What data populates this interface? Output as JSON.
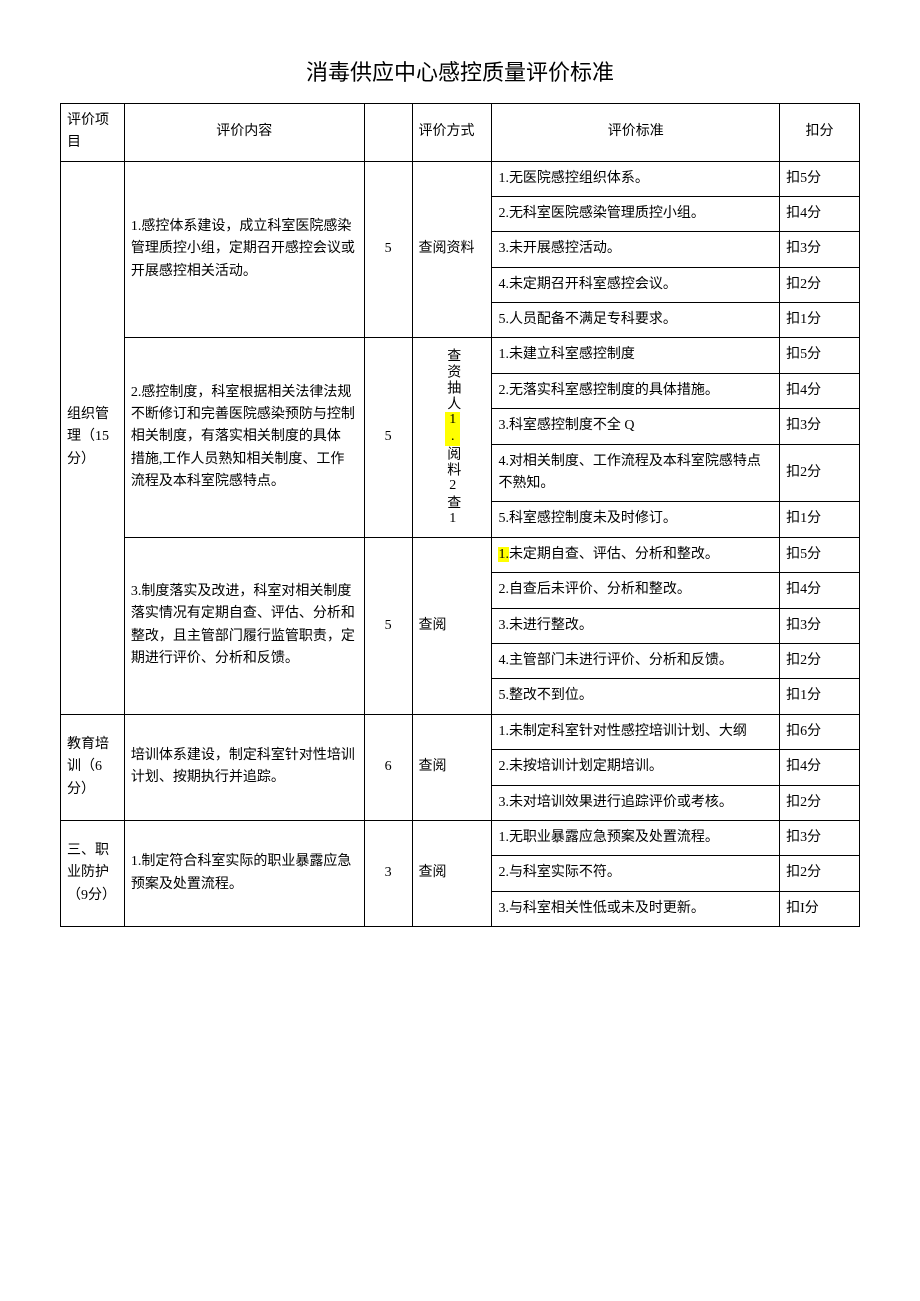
{
  "title": "消毒供应中心感控质量评价标准",
  "headers": {
    "category": "评价项目",
    "content": "评价内容",
    "points_blank": "",
    "method": "评价方式",
    "standard": "评价标准",
    "deduction": "扣分"
  },
  "sections": [
    {
      "category": "组织管理（15分）",
      "items": [
        {
          "content": "1.感控体系建设，成立科室医院感染管理质控小组，定期召开感控会议或开展感控相关活动。",
          "points": "5",
          "method": "查阅资料",
          "criteria": [
            {
              "text": "1.无医院感控组织体系。",
              "deduct": "扣5分"
            },
            {
              "text": "2.无科室医院感染管理质控小组。",
              "deduct": "扣4分"
            },
            {
              "text": "3.未开展感控活动。",
              "deduct": "扣3分"
            },
            {
              "text": "4.未定期召开科室感控会议。",
              "deduct": "扣2分"
            },
            {
              "text": "5.人员配备不满足专科要求。",
              "deduct": "扣1分"
            }
          ]
        },
        {
          "content": "2.感控制度，科室根据相关法律法规不断修订和完善医院感染预防与控制相关制度，有落实相关制度的具体\n措施,工作人员熟知相关制度、工作流程及本科室院感特点。",
          "points": "5",
          "method_vertical": "查资抽人1.阅料2查1",
          "criteria": [
            {
              "text": "1.未建立科室感控制度",
              "deduct": "扣5分"
            },
            {
              "text": "2.无落实科室感控制度的具体措施。",
              "deduct": "扣4分"
            },
            {
              "text": "3.科室感控制度不全\nQ",
              "deduct": "扣3分"
            },
            {
              "text": "4.对相关制度、工作流程及本科室院感特点不熟知。",
              "deduct": "扣2分"
            },
            {
              "text": "5.科室感控制度未及时修订。",
              "deduct": "扣1分"
            }
          ]
        },
        {
          "content": "3.制度落实及改进，科室对相关制度落实情况有定期自查、评估、分析和整改，且主管部门履行监管职责，定期进行评价、分析和反馈。",
          "points": "5",
          "method": "查阅",
          "criteria": [
            {
              "text_pre": "1.",
              "text": "未定期自查、评估、分析和整改。",
              "deduct": "扣5分",
              "hl_prefix": true
            },
            {
              "text": "2.自查后未评价、分析和整改。",
              "deduct": "扣4分"
            },
            {
              "text": "3.未进行整改。",
              "deduct": "扣3分"
            },
            {
              "text": "4.主管部门未进行评价、分析和反馈。",
              "deduct": "扣2分"
            },
            {
              "text": "5.整改不到位。",
              "deduct": "扣1分"
            }
          ]
        }
      ]
    },
    {
      "category": "教育培训（6分）",
      "items": [
        {
          "content": "培训体系建设，制定科室针对性培训计划、按期执行并追踪。",
          "points": "6",
          "method": "查阅",
          "criteria": [
            {
              "text": "1.未制定科室针对性感控培训计划、大纲",
              "deduct": "扣6分"
            },
            {
              "text": "2.未按培训计划定期培训。",
              "deduct": "扣4分"
            },
            {
              "text": "3.未对培训效果进行追踪评价或考核。",
              "deduct": "扣2分"
            }
          ]
        }
      ]
    },
    {
      "category": "三、职业防护（9分）",
      "items": [
        {
          "content": "1.制定符合科室实际的职业暴露应急预案及处置流程。",
          "points": "3",
          "method": "查阅",
          "criteria": [
            {
              "text": "1.无职业暴露应急预案及处置流程。",
              "deduct": "扣3分"
            },
            {
              "text": "2.与科室实际不符。",
              "deduct": "扣2分"
            },
            {
              "text": "3.与科室相关性低或未及时更新。",
              "deduct": "扣I分"
            }
          ]
        }
      ]
    }
  ]
}
